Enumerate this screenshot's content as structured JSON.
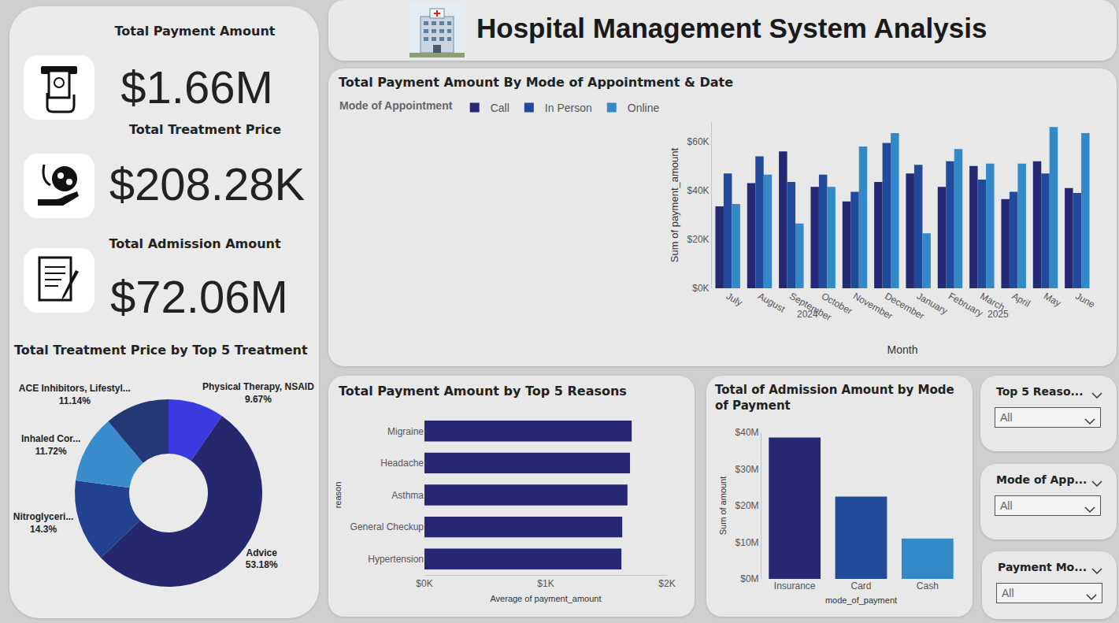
{
  "header": {
    "title": "Hospital Management System Analysis"
  },
  "kpis": [
    {
      "title": "Total Payment Amount",
      "value": "$1.66M"
    },
    {
      "title": "Total Treatment Price",
      "value": "$208.28K"
    },
    {
      "title": "Total Admission Amount",
      "value": "$72.06M"
    }
  ],
  "slicers": [
    {
      "title": "Top 5 Reaso...",
      "selection": "All"
    },
    {
      "title": "Mode of App...",
      "selection": "All"
    },
    {
      "title": "Payment Mo...",
      "selection": "All"
    }
  ],
  "chart_data": [
    {
      "type": "bar",
      "title": "Total Payment Amount By Mode of Appointment & Date",
      "legend_title": "Mode of Appointment",
      "legend": "top-left",
      "categories": [
        "July",
        "August",
        "September",
        "October",
        "November",
        "December",
        "January",
        "February",
        "March",
        "April",
        "May",
        "June"
      ],
      "category_groups": [
        "2024",
        "2024",
        "2024",
        "2024",
        "2024",
        "2024",
        "2025",
        "2025",
        "2025",
        "2025",
        "2025",
        "2025"
      ],
      "x_label": "Month",
      "y_label": "Sum of payment_amount",
      "series": [
        {
          "name": "Call",
          "color": "#262873",
          "values": [
            33500,
            43000,
            56000,
            41500,
            35500,
            43500,
            47000,
            41500,
            50000,
            36500,
            52000,
            41000
          ]
        },
        {
          "name": "In Person",
          "color": "#214a9a",
          "values": [
            47000,
            54000,
            43500,
            46500,
            39500,
            59500,
            50500,
            52000,
            44500,
            39500,
            47000,
            39000
          ]
        },
        {
          "name": "Online",
          "color": "#3389c8",
          "values": [
            34500,
            46500,
            26500,
            41500,
            58000,
            63500,
            22500,
            57000,
            51000,
            51000,
            66000,
            63500
          ]
        }
      ],
      "ylim": [
        0,
        68000
      ],
      "yticks": [
        {
          "value": 0,
          "label": "$0K"
        },
        {
          "value": 20000,
          "label": "$20K"
        },
        {
          "value": 40000,
          "label": "$40K"
        },
        {
          "value": 60000,
          "label": "$60K"
        }
      ],
      "grid": false
    },
    {
      "type": "bar",
      "orientation": "horizontal",
      "title": "Total Payment Amount by Top 5 Reasons",
      "categories": [
        "Migraine",
        "Headache",
        "Asthma",
        "General Checkup",
        "Hypertension"
      ],
      "values": [
        1709,
        1695,
        1674,
        1631,
        1624
      ],
      "color": "#262873",
      "x_label": "Average of payment_amount",
      "y_label": "reason",
      "xlim": [
        0,
        2000
      ],
      "xticks": [
        {
          "value": 0,
          "label": "$0K"
        },
        {
          "value": 1000,
          "label": "$1K"
        },
        {
          "value": 2000,
          "label": "$2K"
        }
      ],
      "grid": false
    },
    {
      "type": "bar",
      "title": "Total of Admission Amount by Mode of Payment",
      "categories": [
        "Insurance",
        "Card",
        "Cash"
      ],
      "values": [
        38600000,
        22500000,
        11000000
      ],
      "colors": [
        "#262873",
        "#214a9a",
        "#3389c8"
      ],
      "x_label": "mode_of_payment",
      "y_label": "Sum of amount",
      "ylim": [
        0,
        40000000
      ],
      "yticks": [
        {
          "value": 0,
          "label": "$0M"
        },
        {
          "value": 10000000,
          "label": "$10M"
        },
        {
          "value": 20000000,
          "label": "$20M"
        },
        {
          "value": 30000000,
          "label": "$30M"
        },
        {
          "value": 40000000,
          "label": "$40M"
        }
      ],
      "grid": false
    },
    {
      "type": "pie",
      "title": "Total Treatment Price by Top 5 Treatment",
      "categories": [
        "Physical Therapy, NSAID",
        "Advice",
        "Nitroglyceri...",
        "Inhaled Cor...",
        "ACE Inhibitors, Lifestyl..."
      ],
      "values": [
        9.67,
        53.18,
        14.3,
        11.72,
        11.14
      ],
      "value_labels": [
        "9.67%",
        "53.18%",
        "14.3%",
        "11.72%",
        "11.14%"
      ],
      "colors": [
        "#3b3ae0",
        "#26286e",
        "#22428f",
        "#3a8ccc",
        "#243878"
      ],
      "data_labels": true
    }
  ]
}
